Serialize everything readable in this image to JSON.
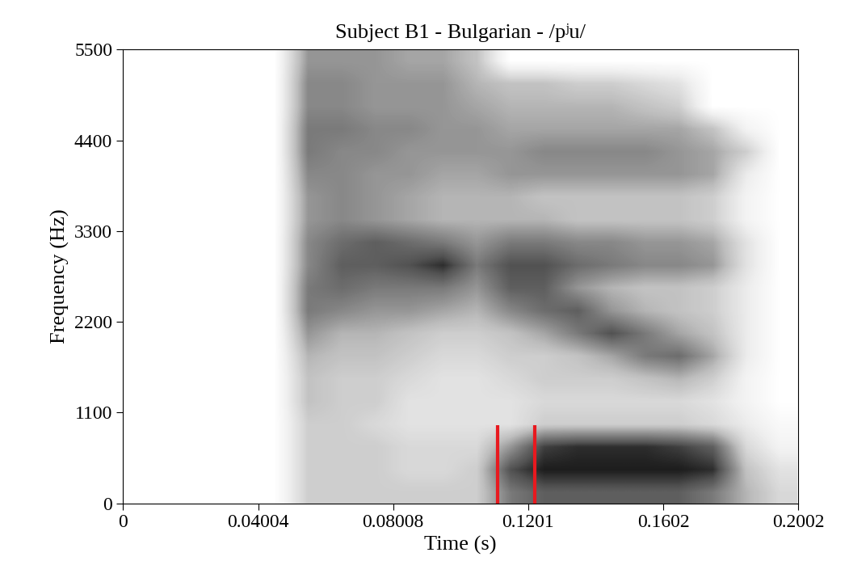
{
  "chart_data": {
    "type": "spectrogram",
    "title": "Subject B1 - Bulgarian - /pʲu/",
    "x_label": "Time (s)",
    "y_label": "Frequency (Hz)",
    "xlim": [
      0,
      0.2002
    ],
    "xticks": [
      0,
      0.04004,
      0.08008,
      0.1201,
      0.1602,
      0.2002
    ],
    "ylim": [
      0,
      5500
    ],
    "yticks": [
      0,
      1100,
      2200,
      3300,
      4400,
      5500
    ],
    "time_edges": [
      0,
      0.01,
      0.02,
      0.03,
      0.04,
      0.05,
      0.06,
      0.07,
      0.08,
      0.09,
      0.1,
      0.11,
      0.12,
      0.13,
      0.14,
      0.15,
      0.16,
      0.17,
      0.18,
      0.19,
      0.2
    ],
    "frequency_edges": [
      0,
      275,
      550,
      825,
      1100,
      1375,
      1650,
      1925,
      2200,
      2475,
      2750,
      3025,
      3300,
      3575,
      3850,
      4125,
      4400,
      4675,
      4950,
      5225,
      5500
    ],
    "intensity_range": [
      0,
      1
    ],
    "intensity": [
      [
        0,
        0,
        0,
        0,
        0,
        0.3,
        0.3,
        0.3,
        0.3,
        0.3,
        0.3,
        0.6,
        0.7,
        0.7,
        0.7,
        0.7,
        0.7,
        0.6,
        0.4,
        0.25
      ],
      [
        0,
        0,
        0,
        0,
        0,
        0.3,
        0.3,
        0.3,
        0.25,
        0.25,
        0.3,
        0.75,
        0.9,
        0.9,
        0.9,
        0.9,
        0.9,
        0.85,
        0.35,
        0.2
      ],
      [
        0,
        0,
        0,
        0,
        0,
        0.3,
        0.3,
        0.3,
        0.25,
        0.25,
        0.25,
        0.5,
        0.8,
        0.85,
        0.85,
        0.85,
        0.8,
        0.7,
        0.25,
        0.1
      ],
      [
        0,
        0,
        0,
        0,
        0,
        0.3,
        0.3,
        0.25,
        0.2,
        0.2,
        0.2,
        0.2,
        0.3,
        0.3,
        0.3,
        0.3,
        0.3,
        0.25,
        0.15,
        0.05
      ],
      [
        0,
        0,
        0,
        0,
        0,
        0.35,
        0.3,
        0.3,
        0.2,
        0.2,
        0.2,
        0.2,
        0.25,
        0.25,
        0.25,
        0.25,
        0.25,
        0.2,
        0.1,
        0
      ],
      [
        0,
        0,
        0,
        0,
        0,
        0.35,
        0.3,
        0.3,
        0.25,
        0.2,
        0.2,
        0.25,
        0.3,
        0.3,
        0.3,
        0.35,
        0.4,
        0.3,
        0.1,
        0
      ],
      [
        0,
        0,
        0,
        0,
        0,
        0.4,
        0.35,
        0.35,
        0.3,
        0.25,
        0.25,
        0.3,
        0.3,
        0.35,
        0.45,
        0.6,
        0.65,
        0.45,
        0.15,
        0
      ],
      [
        0,
        0,
        0,
        0,
        0,
        0.5,
        0.4,
        0.4,
        0.35,
        0.3,
        0.3,
        0.35,
        0.45,
        0.6,
        0.75,
        0.6,
        0.45,
        0.35,
        0.15,
        0
      ],
      [
        0,
        0,
        0,
        0,
        0,
        0.6,
        0.55,
        0.5,
        0.5,
        0.45,
        0.4,
        0.55,
        0.65,
        0.7,
        0.5,
        0.4,
        0.35,
        0.3,
        0.15,
        0
      ],
      [
        0,
        0,
        0,
        0,
        0,
        0.6,
        0.65,
        0.6,
        0.6,
        0.6,
        0.5,
        0.7,
        0.7,
        0.5,
        0.4,
        0.35,
        0.35,
        0.3,
        0.15,
        0
      ],
      [
        0,
        0,
        0,
        0,
        0,
        0.55,
        0.7,
        0.7,
        0.75,
        0.85,
        0.6,
        0.75,
        0.75,
        0.65,
        0.6,
        0.55,
        0.55,
        0.5,
        0.2,
        0
      ],
      [
        0,
        0,
        0,
        0,
        0,
        0.55,
        0.65,
        0.7,
        0.65,
        0.6,
        0.5,
        0.6,
        0.6,
        0.55,
        0.55,
        0.5,
        0.5,
        0.45,
        0.2,
        0
      ],
      [
        0,
        0,
        0,
        0,
        0,
        0.5,
        0.55,
        0.5,
        0.45,
        0.4,
        0.4,
        0.4,
        0.4,
        0.35,
        0.35,
        0.35,
        0.35,
        0.3,
        0.1,
        0
      ],
      [
        0,
        0,
        0,
        0,
        0,
        0.5,
        0.55,
        0.5,
        0.45,
        0.4,
        0.4,
        0.4,
        0.35,
        0.35,
        0.35,
        0.35,
        0.35,
        0.3,
        0.1,
        0
      ],
      [
        0,
        0,
        0,
        0,
        0,
        0.55,
        0.55,
        0.5,
        0.5,
        0.45,
        0.45,
        0.5,
        0.5,
        0.5,
        0.5,
        0.5,
        0.5,
        0.45,
        0.15,
        0
      ],
      [
        0,
        0,
        0,
        0,
        0,
        0.6,
        0.55,
        0.55,
        0.5,
        0.5,
        0.5,
        0.5,
        0.55,
        0.55,
        0.55,
        0.55,
        0.5,
        0.45,
        0.3,
        0
      ],
      [
        0,
        0,
        0,
        0,
        0,
        0.6,
        0.6,
        0.55,
        0.55,
        0.5,
        0.5,
        0.45,
        0.45,
        0.45,
        0.45,
        0.45,
        0.45,
        0.35,
        0.1,
        0
      ],
      [
        0,
        0,
        0,
        0,
        0,
        0.55,
        0.55,
        0.5,
        0.5,
        0.5,
        0.45,
        0.4,
        0.4,
        0.4,
        0.4,
        0.35,
        0.3,
        0,
        0,
        0
      ],
      [
        0,
        0,
        0,
        0,
        0,
        0.55,
        0.55,
        0.5,
        0.5,
        0.5,
        0.4,
        0.35,
        0.35,
        0.3,
        0.3,
        0.25,
        0.2,
        0,
        0,
        0
      ],
      [
        0,
        0,
        0,
        0,
        0,
        0.5,
        0.5,
        0.5,
        0.45,
        0.45,
        0.35,
        0,
        0,
        0,
        0,
        0,
        0,
        0,
        0,
        0
      ]
    ],
    "vertical_lines": {
      "x": [
        0.111,
        0.122
      ],
      "ymax": 950,
      "color": "#e8191f"
    }
  }
}
